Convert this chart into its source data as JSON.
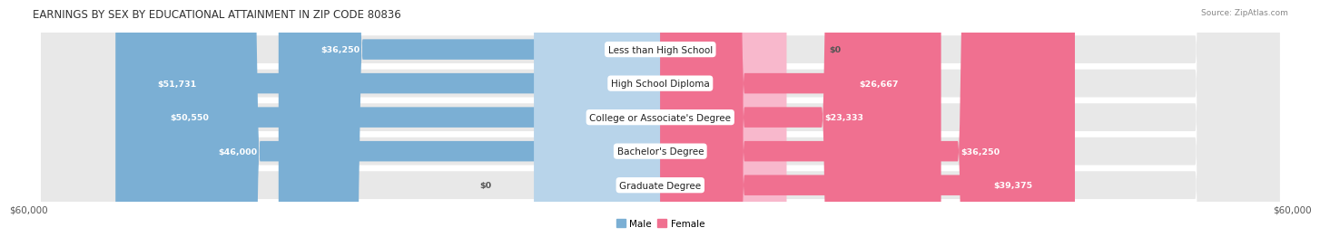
{
  "title": "EARNINGS BY SEX BY EDUCATIONAL ATTAINMENT IN ZIP CODE 80836",
  "source": "Source: ZipAtlas.com",
  "categories": [
    "Less than High School",
    "High School Diploma",
    "College or Associate's Degree",
    "Bachelor's Degree",
    "Graduate Degree"
  ],
  "male_values": [
    36250,
    51731,
    50550,
    46000,
    0
  ],
  "female_values": [
    0,
    26667,
    23333,
    36250,
    39375
  ],
  "male_labels": [
    "$36,250",
    "$51,731",
    "$50,550",
    "$46,000",
    "$0"
  ],
  "female_labels": [
    "$0",
    "$26,667",
    "$23,333",
    "$36,250",
    "$39,375"
  ],
  "male_color": "#7bafd4",
  "female_color": "#f07090",
  "male_color_light": "#b8d4ea",
  "female_color_light": "#f8b8cc",
  "row_bg_color": "#e8e8e8",
  "max_value": 60000,
  "xlabel_left": "$60,000",
  "xlabel_right": "$60,000",
  "legend_male": "Male",
  "legend_female": "Female",
  "title_fontsize": 8.5,
  "label_fontsize": 6.8,
  "category_fontsize": 7.5,
  "axis_fontsize": 7.5,
  "source_fontsize": 6.5
}
